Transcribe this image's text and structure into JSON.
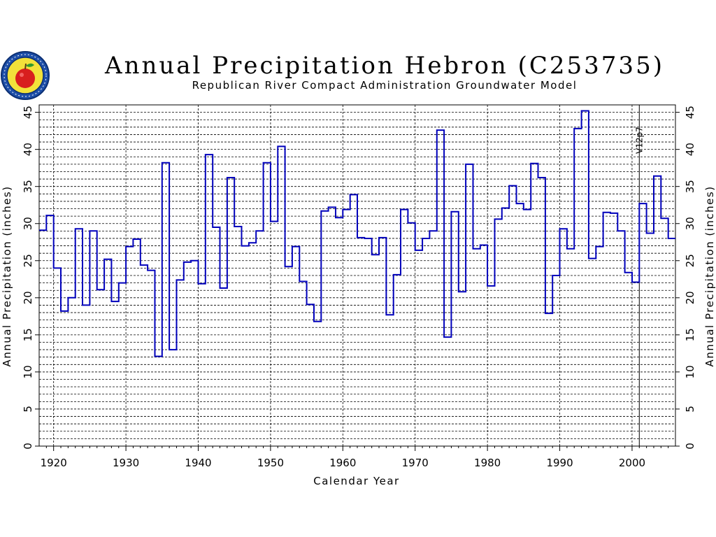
{
  "header": {
    "title": "Annual Precipitation Hebron (C253735)",
    "subtitle": "Republican River Compact Administration Groundwater Model"
  },
  "logo": {
    "icon": "apple-seal-logo"
  },
  "chart_data": {
    "type": "step-line",
    "title": "Annual Precipitation Hebron (C253735)",
    "subtitle": "Republican River Compact Administration Groundwater Model",
    "xlabel": "Calendar Year",
    "ylabel": "Annual Precipitation (inches)",
    "ylabel_right": "Annual Precipitation (inches)",
    "xlim": [
      1918,
      2006
    ],
    "ylim": [
      0,
      46
    ],
    "xticks": [
      1920,
      1930,
      1940,
      1950,
      1960,
      1970,
      1980,
      1990,
      2000
    ],
    "xtick_labels": [
      "1920",
      "1930",
      "1940",
      "1950",
      "1960",
      "1970",
      "1980",
      "1990",
      "2000"
    ],
    "yticks": [
      0,
      5,
      10,
      15,
      20,
      25,
      30,
      35,
      40,
      45
    ],
    "ytick_labels": [
      "0",
      "5",
      "10",
      "15",
      "20",
      "25",
      "30",
      "35",
      "40",
      "45"
    ],
    "grid": true,
    "line_color": "#0000bb",
    "annotation": {
      "text": "V12p7",
      "x": 2001
    },
    "x": [
      1918,
      1919,
      1920,
      1921,
      1922,
      1923,
      1924,
      1925,
      1926,
      1927,
      1928,
      1929,
      1930,
      1931,
      1932,
      1933,
      1934,
      1935,
      1936,
      1937,
      1938,
      1939,
      1940,
      1941,
      1942,
      1943,
      1944,
      1945,
      1946,
      1947,
      1948,
      1949,
      1950,
      1951,
      1952,
      1953,
      1954,
      1955,
      1956,
      1957,
      1958,
      1959,
      1960,
      1961,
      1962,
      1963,
      1964,
      1965,
      1966,
      1967,
      1968,
      1969,
      1970,
      1971,
      1972,
      1973,
      1974,
      1975,
      1976,
      1977,
      1978,
      1979,
      1980,
      1981,
      1982,
      1983,
      1984,
      1985,
      1986,
      1987,
      1988,
      1989,
      1990,
      1991,
      1992,
      1993,
      1994,
      1995,
      1996,
      1997,
      1998,
      1999,
      2000,
      2001,
      2002,
      2003,
      2004,
      2005
    ],
    "values": [
      29.1,
      31.1,
      24.0,
      18.2,
      20.0,
      29.3,
      19.0,
      29.0,
      21.1,
      25.2,
      19.5,
      22.0,
      26.9,
      27.9,
      24.4,
      23.7,
      12.1,
      38.2,
      13.0,
      22.4,
      24.8,
      25.0,
      21.9,
      39.3,
      29.5,
      21.3,
      36.2,
      29.6,
      27.0,
      27.4,
      29.0,
      38.2,
      30.3,
      40.4,
      24.2,
      26.9,
      22.2,
      19.1,
      16.8,
      31.7,
      32.2,
      30.8,
      31.9,
      33.9,
      28.1,
      28.0,
      25.8,
      28.1,
      17.7,
      23.1,
      31.9,
      30.1,
      26.4,
      28.0,
      29.0,
      42.6,
      14.7,
      31.6,
      20.8,
      38.0,
      26.6,
      27.1,
      21.6,
      30.6,
      32.1,
      35.1,
      32.7,
      31.9,
      38.1,
      36.2,
      17.9,
      23.0,
      29.3,
      26.6,
      42.8,
      45.2,
      25.3,
      26.9,
      31.5,
      31.4,
      29.0,
      23.4,
      22.1,
      32.7,
      28.7,
      36.4,
      30.7,
      28.0
    ]
  }
}
